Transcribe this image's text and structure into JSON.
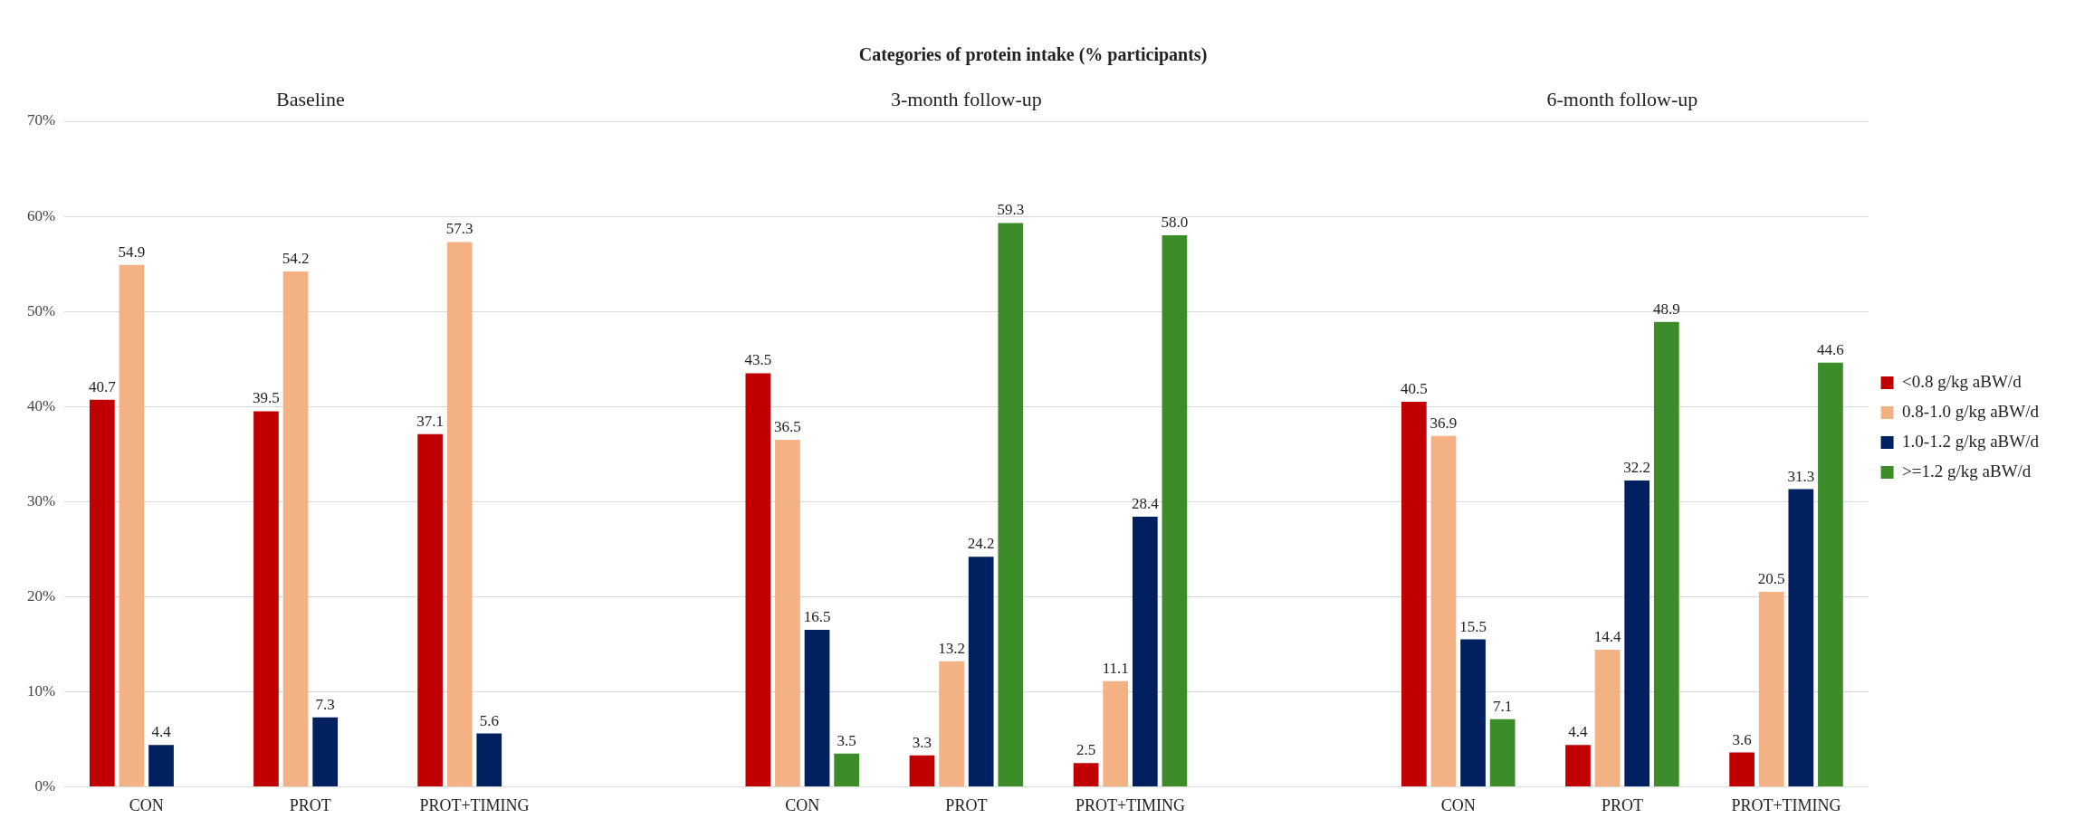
{
  "chart_data": {
    "type": "bar",
    "title": "Categories of protein intake (% participants)",
    "categories": [
      "CON",
      "PROT",
      "PROT+TIMING",
      null,
      "CON",
      "PROT",
      "PROT+TIMING",
      null,
      "CON",
      "PROT",
      "PROT+TIMING"
    ],
    "annotations": [
      "Baseline",
      "3-month follow-up",
      "6-month follow-up"
    ],
    "series": [
      {
        "name": "<0.8 g/kg aBW/d",
        "color": "#c00000",
        "values": [
          40.7,
          39.5,
          37.1,
          null,
          43.5,
          3.3,
          2.5,
          null,
          40.5,
          4.4,
          3.6
        ],
        "value_labels": [
          "40.7",
          "39.5",
          "37.1",
          null,
          "43.5",
          "3.3",
          "2.5",
          null,
          "40.5",
          "4.4",
          "3.6"
        ]
      },
      {
        "name": "0.8-1.0 g/kg aBW/d",
        "color": "#f4b183",
        "values": [
          54.9,
          54.2,
          57.3,
          null,
          36.5,
          13.2,
          11.1,
          null,
          36.9,
          14.4,
          20.5
        ],
        "value_labels": [
          "54.9",
          "54.2",
          "57.3",
          null,
          "36.5",
          "13.2",
          "11.1",
          null,
          "36.9",
          "14.4",
          "20.5"
        ]
      },
      {
        "name": "1.0-1.2 g/kg aBW/d",
        "color": "#002060",
        "values": [
          4.4,
          7.3,
          5.6,
          null,
          16.5,
          24.2,
          28.4,
          null,
          15.5,
          32.2,
          31.3
        ],
        "value_labels": [
          "4.4",
          "7.3",
          "5.6",
          null,
          "16.5",
          "24.2",
          "28.4",
          null,
          "15.5",
          "32.2",
          "31.3"
        ]
      },
      {
        "name": ">=1.2 g/kg aBW/d",
        "color": "#3c8c2a",
        "values": [
          null,
          null,
          null,
          null,
          3.5,
          59.3,
          58.0,
          null,
          7.1,
          48.9,
          44.6
        ],
        "value_labels": [
          null,
          null,
          null,
          null,
          "3.5",
          "59.3",
          "58.0",
          null,
          "7.1",
          "48.9",
          "44.6"
        ]
      }
    ],
    "ylim": [
      0,
      70
    ],
    "yticks": [
      {
        "value": 0,
        "label": "0%"
      },
      {
        "value": 10,
        "label": "10%"
      },
      {
        "value": 20,
        "label": "20%"
      },
      {
        "value": 30,
        "label": "30%"
      },
      {
        "value": 40,
        "label": "40%"
      },
      {
        "value": 50,
        "label": "50%"
      },
      {
        "value": 60,
        "label": "60%"
      },
      {
        "value": 70,
        "label": "70%"
      }
    ],
    "grid": "y",
    "legend": "right"
  }
}
